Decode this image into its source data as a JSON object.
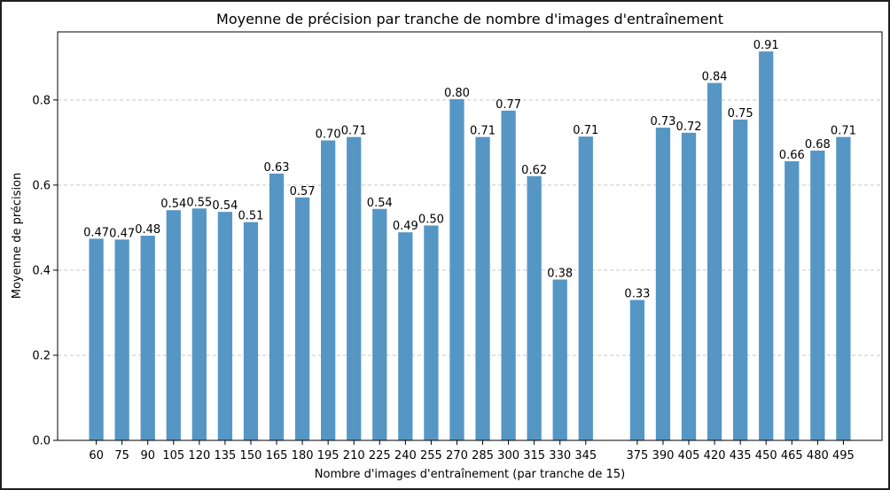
{
  "chart_data": {
    "type": "bar",
    "title": "Moyenne de précision par tranche de nombre d'images d'entraînement",
    "xlabel": "Nombre d'images d'entraînement (par tranche de 15)",
    "ylabel": "Moyenne de précision",
    "ylim": [
      0,
      0.96
    ],
    "yticks": [
      0.0,
      0.2,
      0.4,
      0.6,
      0.8
    ],
    "ytick_labels": [
      "0.0",
      "0.2",
      "0.4",
      "0.6",
      "0.8"
    ],
    "xlim": [
      37.5,
      517.5
    ],
    "grid": "y",
    "bar_width": 8.4,
    "x": [
      60,
      75,
      90,
      105,
      120,
      135,
      150,
      165,
      180,
      195,
      210,
      225,
      240,
      255,
      270,
      285,
      300,
      315,
      330,
      345,
      375,
      390,
      405,
      420,
      435,
      450,
      465,
      480,
      495
    ],
    "categories": [
      "60",
      "75",
      "90",
      "105",
      "120",
      "135",
      "150",
      "165",
      "180",
      "195",
      "210",
      "225",
      "240",
      "255",
      "270",
      "285",
      "300",
      "315",
      "330",
      "345",
      "375",
      "390",
      "405",
      "420",
      "435",
      "450",
      "465",
      "480",
      "495"
    ],
    "values": [
      0.474,
      0.472,
      0.481,
      0.541,
      0.545,
      0.537,
      0.513,
      0.627,
      0.571,
      0.705,
      0.713,
      0.544,
      0.489,
      0.505,
      0.802,
      0.713,
      0.775,
      0.621,
      0.378,
      0.714,
      0.33,
      0.735,
      0.723,
      0.84,
      0.754,
      0.914,
      0.656,
      0.681,
      0.713
    ],
    "value_labels": [
      "0.47",
      "0.47",
      "0.48",
      "0.54",
      "0.55",
      "0.54",
      "0.51",
      "0.63",
      "0.57",
      "0.70",
      "0.71",
      "0.54",
      "0.49",
      "0.50",
      "0.80",
      "0.71",
      "0.77",
      "0.62",
      "0.38",
      "0.71",
      "0.33",
      "0.73",
      "0.72",
      "0.84",
      "0.75",
      "0.91",
      "0.66",
      "0.68",
      "0.71"
    ],
    "colors": {
      "bar": "#5696c4",
      "grid": "#c8c8c8"
    }
  }
}
